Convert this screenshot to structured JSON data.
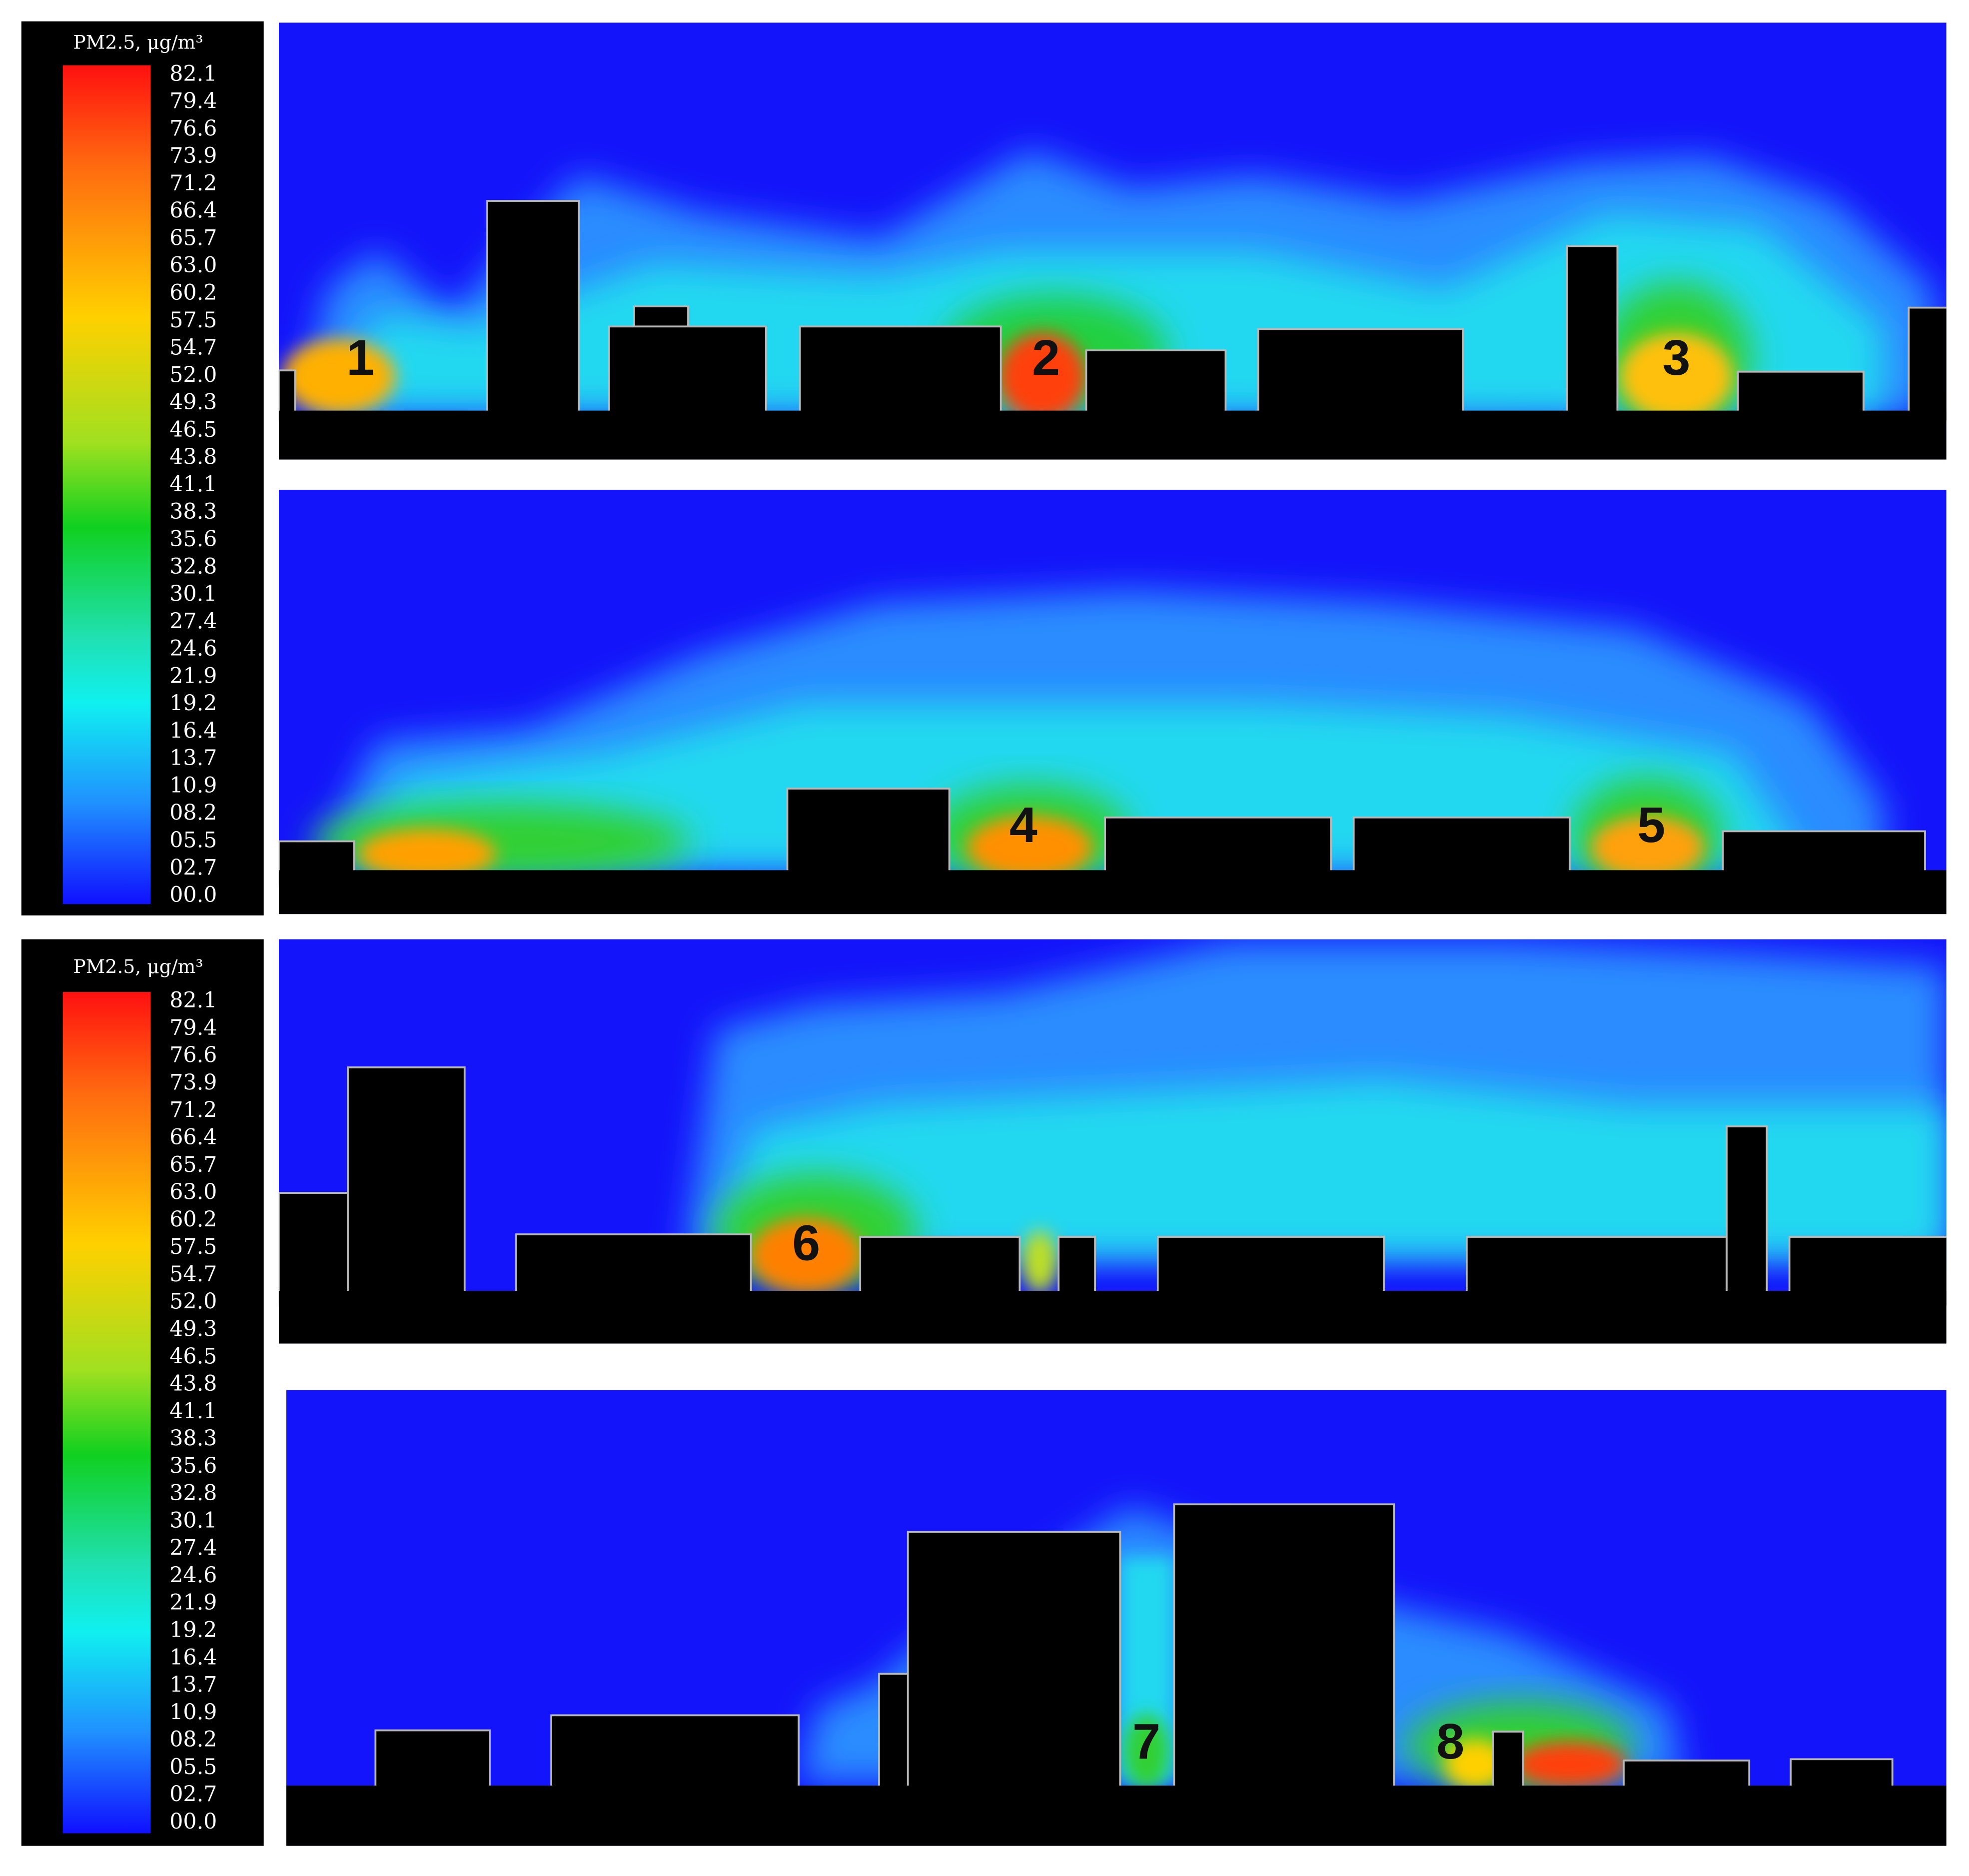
{
  "legends": [
    {
      "title": "PM2.5, μg/m³",
      "ticks": [
        "82.1",
        "79.4",
        "76.6",
        "73.9",
        "71.2",
        "66.4",
        "65.7",
        "63.0",
        "60.2",
        "57.5",
        "54.7",
        "52.0",
        "49.3",
        "46.5",
        "43.8",
        "41.1",
        "38.3",
        "35.6",
        "32.8",
        "30.1",
        "27.4",
        "24.6",
        "21.9",
        "19.2",
        "16.4",
        "13.7",
        "10.9",
        "08.2",
        "05.5",
        "02.7",
        "00.0"
      ]
    },
    {
      "title": "PM2.5, μg/m³",
      "ticks": [
        "82.1",
        "79.4",
        "76.6",
        "73.9",
        "71.2",
        "66.4",
        "65.7",
        "63.0",
        "60.2",
        "57.5",
        "54.7",
        "52.0",
        "49.3",
        "46.5",
        "43.8",
        "41.1",
        "38.3",
        "35.6",
        "32.8",
        "30.1",
        "27.4",
        "24.6",
        "21.9",
        "19.2",
        "16.4",
        "13.7",
        "10.9",
        "08.2",
        "05.5",
        "02.7",
        "00.0"
      ]
    }
  ],
  "panels": [
    {
      "labels": [
        "1",
        "2",
        "3"
      ]
    },
    {
      "labels": [
        "4",
        "5"
      ]
    },
    {
      "labels": [
        "6"
      ]
    },
    {
      "labels": [
        "7",
        "8"
      ]
    }
  ]
}
